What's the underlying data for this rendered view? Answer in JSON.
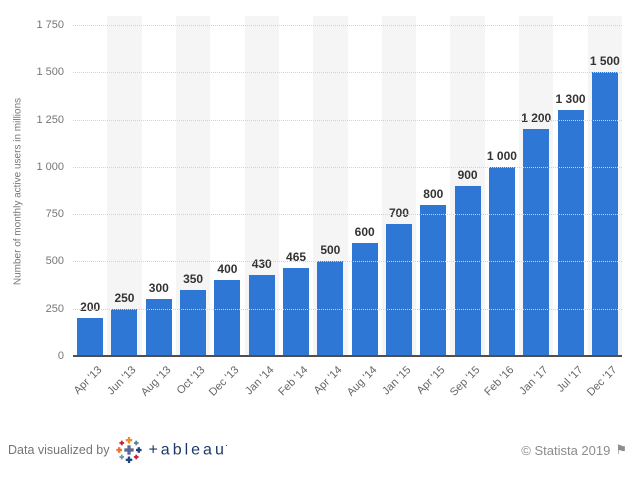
{
  "chart_data": {
    "type": "bar",
    "title": "",
    "xlabel": "",
    "ylabel": "Number of monthly active users in millions",
    "categories": [
      "Apr '13",
      "Jun '13",
      "Aug '13",
      "Oct '13",
      "Dec '13",
      "Jan '14",
      "Feb '14",
      "Apr '14",
      "Aug '14",
      "Jan '15",
      "Apr '15",
      "Sep '15",
      "Feb '16",
      "Jan '17",
      "Jul '17",
      "Dec '17"
    ],
    "values": [
      200,
      250,
      300,
      350,
      400,
      430,
      465,
      500,
      600,
      700,
      800,
      900,
      1000,
      1200,
      1300,
      1500
    ],
    "value_labels": [
      "200",
      "250",
      "300",
      "350",
      "400",
      "430",
      "465",
      "500",
      "600",
      "700",
      "800",
      "900",
      "1 000",
      "1 200",
      "1 300",
      "1 500"
    ],
    "ylim": [
      0,
      1750
    ],
    "y_ticks": [
      0,
      250,
      500,
      750,
      1000,
      1250,
      1500,
      1750
    ],
    "y_tick_labels": [
      "0",
      "250",
      "500",
      "750",
      "1 000",
      "1 250",
      "1 500",
      "1 750"
    ],
    "grid": "horizontal-dotted",
    "legend": "none",
    "bar_color": "#2e77d4",
    "band_color": "#f5f5f5"
  },
  "footer": {
    "left_text": "Data visualized by",
    "tableau_wordmark": "+ableau",
    "tableau_tm": "·",
    "copyright": "© Statista 2019",
    "flag_icon": "⚑"
  },
  "colors": {
    "bar": "#2e77d4",
    "band": "#f5f5f5",
    "grid": "#d2d2d2",
    "axis_line": "#4f4f4f",
    "axis_text": "#767676",
    "value_label": "#333333",
    "x_label": "#666666",
    "tableau_navy": "#1b3a66",
    "statista_gray": "#8c8c8c"
  }
}
